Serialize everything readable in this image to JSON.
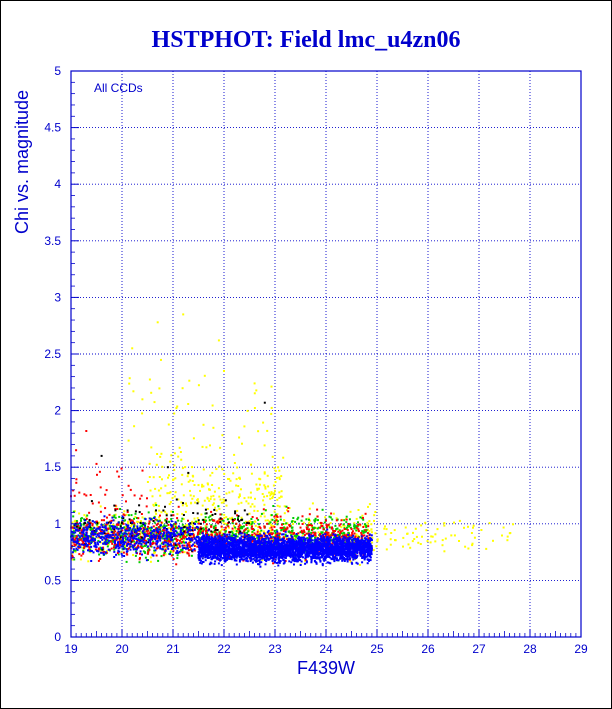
{
  "chart_data": {
    "type": "scatter",
    "title": "HSTPHOT: Field lmc_u4zn06",
    "xlabel": "F439W",
    "ylabel": "Chi vs. magnitude",
    "annotation": "All CCDs",
    "xlim": [
      19,
      29
    ],
    "ylim": [
      0,
      5
    ],
    "x_ticks": [
      19,
      20,
      21,
      22,
      23,
      24,
      25,
      26,
      27,
      28,
      29
    ],
    "y_ticks": [
      0,
      0.5,
      1,
      1.5,
      2,
      2.5,
      3,
      3.5,
      4,
      4.5,
      5
    ],
    "x_tick_labels": [
      "19",
      "20",
      "21",
      "22",
      "23",
      "24",
      "25",
      "26",
      "27",
      "28",
      "29"
    ],
    "y_tick_labels": [
      "0",
      "0.5",
      "1",
      "1.5",
      "2",
      "2.5",
      "3",
      "3.5",
      "4",
      "4.5",
      "5"
    ],
    "grid": true,
    "series_colors": {
      "ccd_black": "#000000",
      "ccd_red": "#ff0000",
      "ccd_green": "#00cc00",
      "ccd_blue": "#0000ff",
      "ccd_yellow": "#ffff00"
    },
    "series": [
      {
        "key": "ccd_yellow",
        "color": "#ffff00",
        "clusters": [
          {
            "x_range": [
              19.0,
              25.0
            ],
            "y_center": 0.92,
            "y_spread": 0.22,
            "count": 500
          },
          {
            "x_range": [
              20.5,
              23.2
            ],
            "y_center": 1.3,
            "y_spread": 0.3,
            "count": 220
          },
          {
            "x_range": [
              20.0,
              23.0
            ],
            "y_center": 2.0,
            "y_spread": 0.4,
            "count": 40
          },
          {
            "x_range": [
              25.0,
              27.7
            ],
            "y_center": 0.9,
            "y_spread": 0.12,
            "count": 70
          }
        ],
        "points": [
          [
            20.7,
            2.78
          ],
          [
            21.2,
            2.85
          ],
          [
            22.0,
            2.35
          ],
          [
            20.2,
            2.55
          ],
          [
            21.9,
            2.62
          ],
          [
            22.6,
            2.24
          ],
          [
            20.4,
            2.1
          ],
          [
            22.4,
            1.86
          ]
        ]
      },
      {
        "key": "ccd_green",
        "color": "#00cc00",
        "clusters": [
          {
            "x_range": [
              19.0,
              24.8
            ],
            "y_center": 0.9,
            "y_spread": 0.18,
            "count": 900
          }
        ],
        "points": []
      },
      {
        "key": "ccd_red",
        "color": "#ff0000",
        "clusters": [
          {
            "x_range": [
              19.0,
              24.9
            ],
            "y_center": 0.88,
            "y_spread": 0.18,
            "count": 900
          },
          {
            "x_range": [
              19.0,
              20.5
            ],
            "y_center": 1.25,
            "y_spread": 0.25,
            "count": 40
          }
        ],
        "points": [
          [
            19.3,
            1.82
          ],
          [
            19.1,
            1.65
          ]
        ]
      },
      {
        "key": "ccd_black",
        "color": "#000000",
        "clusters": [
          {
            "x_range": [
              19.0,
              22.5
            ],
            "y_center": 1.0,
            "y_spread": 0.2,
            "count": 120
          }
        ],
        "points": [
          [
            22.8,
            2.07
          ],
          [
            19.6,
            1.6
          ],
          [
            20.9,
            1.5
          ],
          [
            21.3,
            1.45
          ]
        ]
      },
      {
        "key": "ccd_blue",
        "color": "#0000ff",
        "clusters": [
          {
            "x_range": [
              19.0,
              21.5
            ],
            "y_center": 0.88,
            "y_spread": 0.15,
            "count": 500
          },
          {
            "x_range": [
              21.5,
              24.9
            ],
            "y_center": 0.78,
            "y_spread": 0.11,
            "count": 3200
          }
        ],
        "points": []
      }
    ]
  }
}
